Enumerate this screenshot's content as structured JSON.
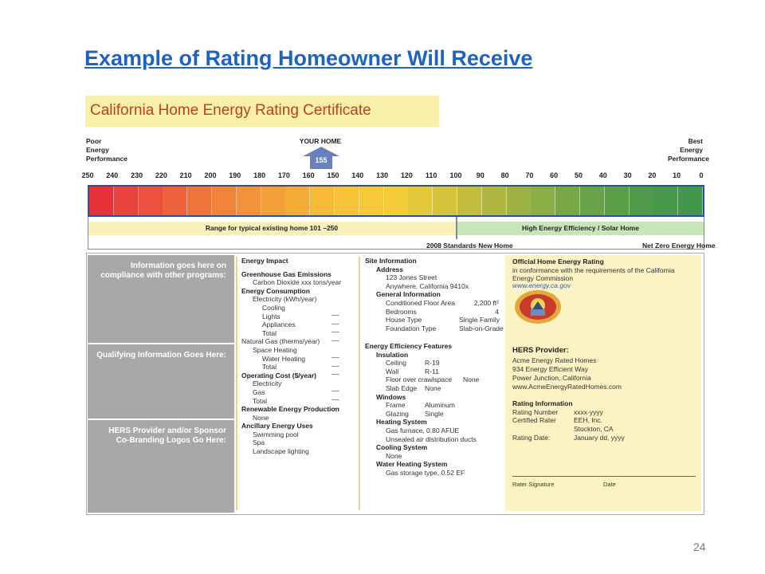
{
  "slide": {
    "title": "Example of Rating Homeowner Will Receive",
    "page_number": "24"
  },
  "certificate": {
    "banner_title": "California Home Energy Rating Certificate",
    "poor_label": [
      "Poor",
      "Energy",
      "Performance"
    ],
    "best_label": [
      "Best",
      "Energy",
      "Performance"
    ],
    "your_home_label": "YOUR HOME",
    "your_home_value": "155",
    "scale_ticks": [
      "250",
      "240",
      "230",
      "220",
      "210",
      "200",
      "190",
      "180",
      "170",
      "160",
      "150",
      "140",
      "130",
      "120",
      "110",
      "100",
      "90",
      "80",
      "70",
      "60",
      "50",
      "40",
      "30",
      "20",
      "10",
      "0"
    ],
    "range_typical": "Range for typical existing home 101 –250",
    "range_high": "High Energy Efficiency / Solar Home",
    "standards_label": "2008 Standards New Home",
    "net_zero_label": "Net Zero Energy Home",
    "colors": [
      "#e8323a",
      "#e9413c",
      "#ea523d",
      "#ec633d",
      "#ee743c",
      "#f0843b",
      "#f2923a",
      "#f4a039",
      "#f6ad38",
      "#f7b937",
      "#f8c236",
      "#f7c937",
      "#f1cb38",
      "#e4c83a",
      "#d5c33c",
      "#c3bd3e",
      "#b0b740",
      "#9db242",
      "#8aad44",
      "#78a846",
      "#68a347",
      "#5a9f48",
      "#4f9b49",
      "#47984a",
      "#42964a"
    ]
  },
  "info_column": {
    "block1": "Information goes here on compliance with other programs:",
    "block2": "Qualifying Information Goes Here:",
    "block3": "HERS Provider and/or Sponsor Co-Branding Logos Go Here:"
  },
  "energy_impact": {
    "title": "Energy Impact",
    "ghg_header": "Greenhouse Gas Emissions",
    "co2": "Carbon Dioxide  xxx tons/year",
    "consumption_header": "Energy Consumption",
    "electricity": "Electricity (kWh/year)",
    "cooling": "Cooling",
    "lights": "Lights",
    "appliances": "Appliances",
    "total1": "Total",
    "natural_gas": "Natural Gas (therms/year)",
    "space_heating": "Space Heating",
    "water_heating": "Water Heating",
    "total2": "Total",
    "operating_header": "Operating Cost ($/year)",
    "op_electricity": "Electricity",
    "op_gas": "Gas",
    "op_total": "Total",
    "renewable_header": "Renewable Energy Production",
    "renewable_value": "None",
    "ancillary_header": "Ancillary Energy Uses",
    "pool": "Swimming pool",
    "spa": "Spa",
    "landscape": "Landscape lighting",
    "blank": "__"
  },
  "site_info": {
    "title": "Site Information",
    "address_header": "Address",
    "street": "123 Jones Street",
    "city": "Anywhere, California 9410x",
    "general_header": "General Information",
    "area_label": "Conditioned Floor Area",
    "area_value": "2,200 ft²",
    "bedrooms_label": "Bedrooms",
    "bedrooms_value": "4",
    "house_type_label": "House Type",
    "house_type_value": "Single Family",
    "foundation_label": "Foundation Type",
    "foundation_value": "Slab-on-Grade"
  },
  "features": {
    "title": "Energy Efficiency Features",
    "insulation_header": "Insulation",
    "ceiling_label": "Ceiling",
    "ceiling_value": "R-19",
    "wall_label": "Wall",
    "wall_value": "R-11",
    "floor_label": "Floor over crawlspace",
    "floor_value": "None",
    "slab_label": "Slab Edge",
    "slab_value": "None",
    "windows_header": "Windows",
    "frame_label": "Frame",
    "frame_value": "Aluminum",
    "glazing_label": "Glazing",
    "glazing_value": "Single",
    "heating_header": "Heating System",
    "heating_value": "Gas furnace, 0.80 AFUE",
    "ducts_value": "Unsealed air distribution ducts",
    "cooling_header": "Cooling System",
    "cooling_value": "None",
    "water_header": "Water Heating System",
    "water_value": "Gas storage type, 0.52 EF"
  },
  "rating": {
    "title": "Official Home Energy Rating",
    "conform1": "in conformance with the requirements of the California",
    "conform2": "Energy Commission",
    "url": "www.energy.ca.gov",
    "provider_header": "HERS Provider:",
    "provider_name": "Acme Energy Rated Homes",
    "provider_street": "934 Energy Efficient Way",
    "provider_city": "Power Junction, California",
    "provider_url": "www.AcmeEnergyRatedHomes.com",
    "info_header": "Rating Information",
    "number_label": "Rating Number",
    "number_value": "xxxx-yyyy",
    "rater_label": "Certified Rater",
    "rater_value": "EEH, Inc.",
    "rater_city": "Stockton, CA",
    "date_label": "Rating Date:",
    "date_value": "January dd, yyyy",
    "signature_label": "Rater Signature",
    "signature_date_label": "Date"
  }
}
